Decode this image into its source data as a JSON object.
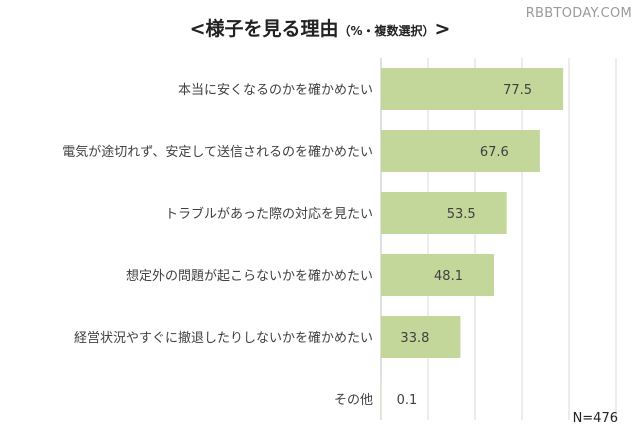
{
  "header": {
    "title_main": "<様子を見る理由",
    "title_sub": "（%・複数選択）",
    "title_end": ">"
  },
  "watermark": "RBBTODAY.COM",
  "note": "N=476",
  "colors": {
    "bar": "#c4d79b",
    "grid": "#d9d9d9",
    "axis": "#bfbfbf"
  },
  "chart_data": {
    "type": "bar",
    "orientation": "horizontal",
    "title": "<様子を見る理由（%・複数選択）>",
    "categories": [
      "本当に安くなるのかを確かめたい",
      "電気が途切れず、安定して送信されるのを確かめたい",
      "トラブルがあった際の対応を見たい",
      "想定外の問題が起こらないかを確かめたい",
      "経営状況やすぐに撤退したりしないかを確かめたい",
      "その他"
    ],
    "values": [
      77.5,
      67.6,
      53.5,
      48.1,
      33.8,
      0.1
    ],
    "value_labels": [
      "77.5",
      "67.6",
      "53.5",
      "48.1",
      "33.8",
      "0.1"
    ],
    "xlim": [
      0,
      100
    ],
    "grid": true,
    "legend": "none"
  }
}
